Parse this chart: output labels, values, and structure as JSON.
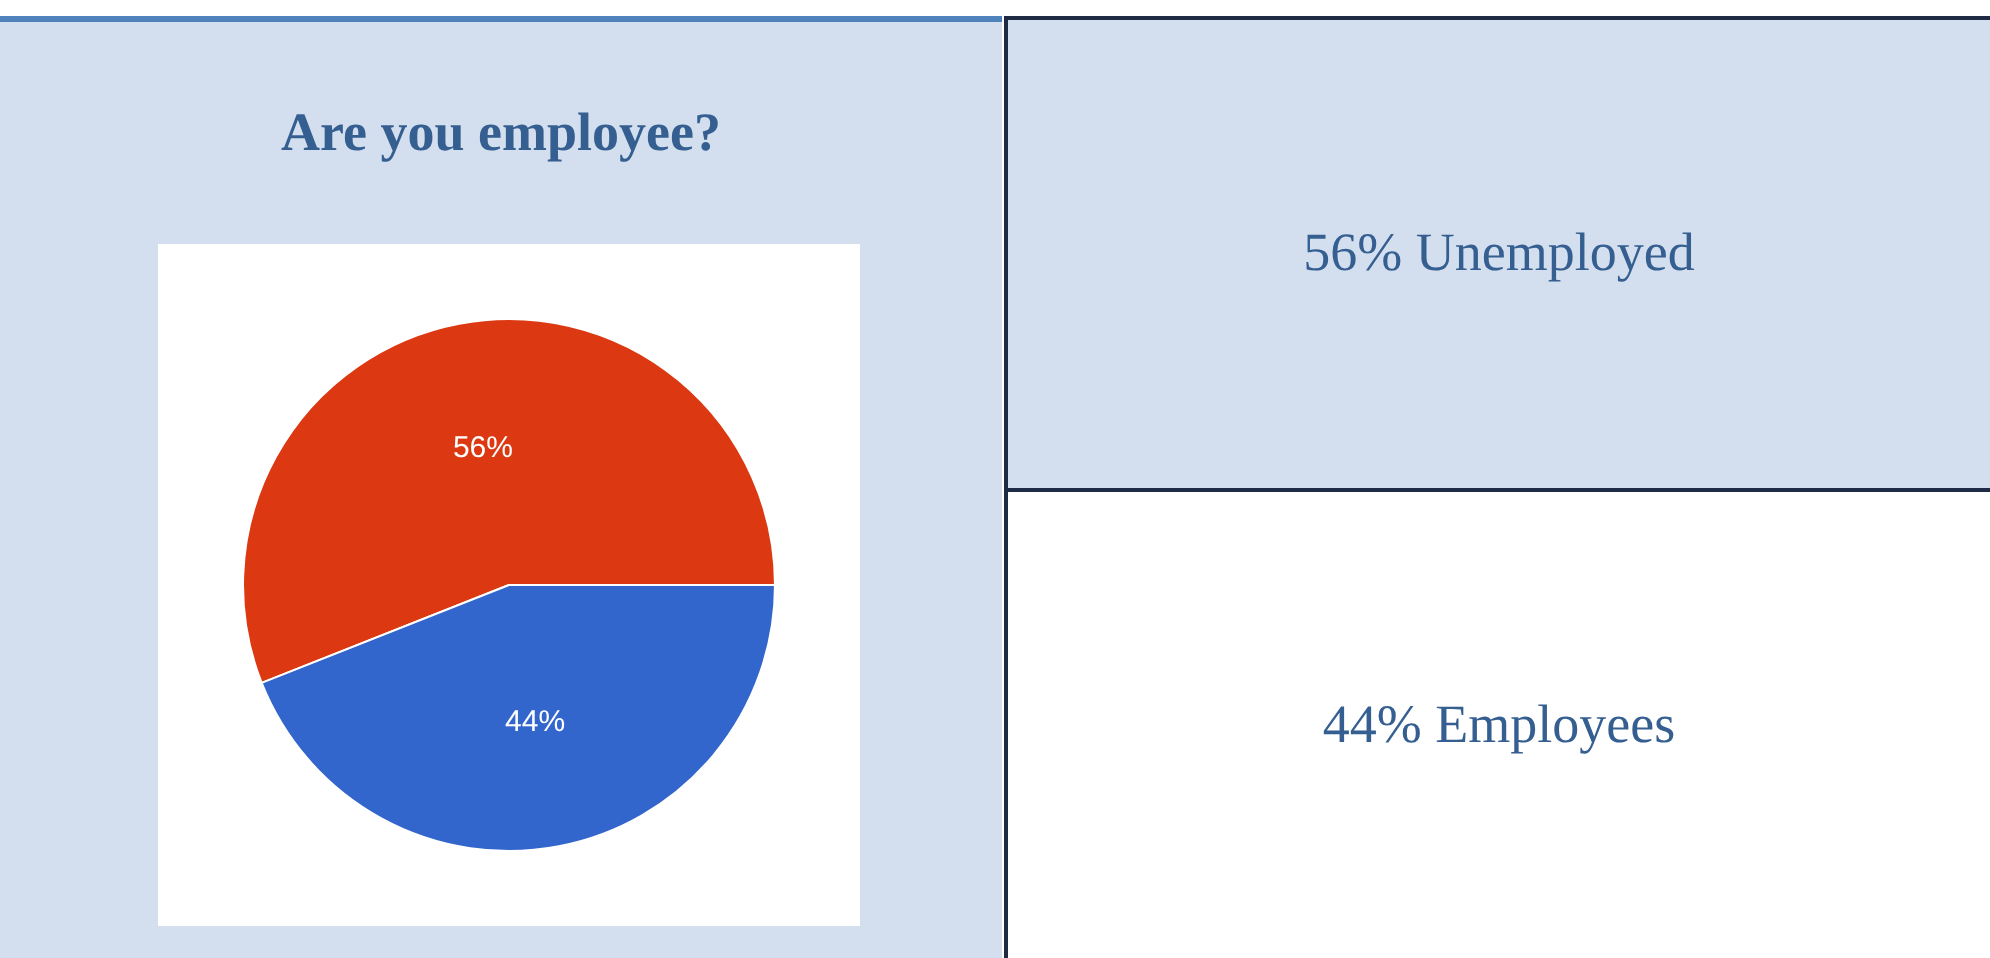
{
  "chart_data": {
    "type": "pie",
    "title": "Are you employee?",
    "categories": [
      null,
      null
    ],
    "values": [
      56,
      44
    ],
    "value_labels": [
      "56%",
      "44%"
    ],
    "colors": [
      "#dc3912",
      "#3366cc"
    ],
    "annotations": [
      "56% Unemployed",
      "44% Employees"
    ]
  }
}
